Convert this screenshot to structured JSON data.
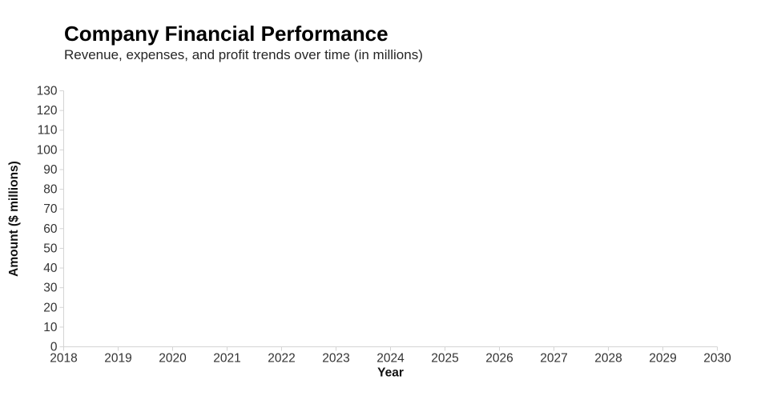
{
  "page": {
    "background": "#ffffff"
  },
  "header": {
    "title": "Company Financial Performance",
    "subtitle": "Revenue, expenses, and profit trends over time (in millions)"
  },
  "chart_data": {
    "type": "line",
    "title": "Company Financial Performance",
    "subtitle": "Revenue, expenses, and profit trends over time (in millions)",
    "xlabel": "Year",
    "ylabel": "Amount ($ millions)",
    "x_ticks": [
      2018,
      2019,
      2020,
      2021,
      2022,
      2023,
      2024,
      2025,
      2026,
      2027,
      2028,
      2029,
      2030
    ],
    "y_ticks": [
      0,
      10,
      20,
      30,
      40,
      50,
      60,
      70,
      80,
      90,
      100,
      110,
      120,
      130
    ],
    "xlim": [
      2018,
      2030
    ],
    "ylim": [
      0,
      130
    ],
    "grid": false,
    "legend": "none",
    "series": [],
    "plot_area_empty": true,
    "colors": {
      "axis_line": "#d4d4d4",
      "tick_mark": "#d4d4d4",
      "tick_label": "#333333",
      "axis_title": "#111111",
      "title": "#000000",
      "subtitle": "#262626"
    }
  }
}
